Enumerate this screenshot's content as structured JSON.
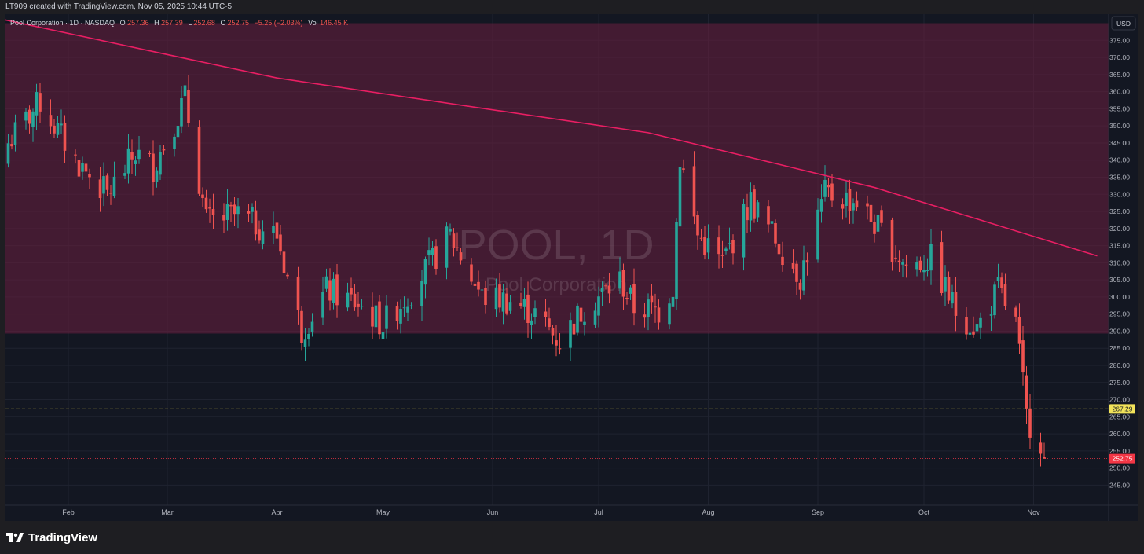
{
  "header": {
    "created_by": "LT909 created with TradingView.com, Nov 05, 2025 10:44 UTC-5"
  },
  "legend": {
    "symbol": "Pool Corporation · 1D · NASDAQ",
    "o_label": "O",
    "o_value": "257.36",
    "h_label": "H",
    "h_value": "257.39",
    "l_label": "L",
    "l_value": "252.68",
    "c_label": "C",
    "c_value": "252.75",
    "change": "−5.25 (−2.03%)",
    "vol_label": "Vol",
    "vol_value": "146.45 K"
  },
  "currency_button": "USD",
  "watermark": {
    "ticker": "POOL, 1D",
    "name": "Pool Corporation"
  },
  "footer": {
    "brand": "TradingView"
  },
  "colors": {
    "up": "#26a69a",
    "down": "#ef5350",
    "trendline": "#e91e63",
    "zone": "#6b1f3f",
    "dotted_level": "#e8d84c",
    "last_price": "#f23645"
  },
  "chart_data": {
    "type": "candlestick",
    "x_labels": [
      "Feb",
      "Mar",
      "Apr",
      "May",
      "Jun",
      "Jul",
      "Aug",
      "Sep",
      "Oct",
      "Nov"
    ],
    "y_ticks": [
      245,
      250,
      255,
      260,
      265,
      270,
      275,
      280,
      285,
      290,
      295,
      300,
      305,
      310,
      315,
      320,
      325,
      330,
      335,
      340,
      345,
      350,
      355,
      360,
      365,
      370,
      375
    ],
    "ylim": [
      240.5,
      381.5
    ],
    "resistance_zone": {
      "from": 289.3,
      "to": 380
    },
    "descending_trendline": [
      {
        "date": "2025-01-14",
        "price": 381
      },
      {
        "date": "2025-04-01",
        "price": 364
      },
      {
        "date": "2025-07-15",
        "price": 348
      },
      {
        "date": "2025-09-17",
        "price": 332
      },
      {
        "date": "2025-11-19",
        "price": 312
      }
    ],
    "marked_level": {
      "value": 267.29,
      "label": "267.29"
    },
    "last_price": {
      "value": 252.75,
      "label": "252.75"
    },
    "anchors": [
      {
        "date": "2025-01-15",
        "close": 345
      },
      {
        "date": "2025-01-24",
        "close": 357
      },
      {
        "date": "2025-02-03",
        "close": 340
      },
      {
        "date": "2025-02-12",
        "close": 330
      },
      {
        "date": "2025-02-20",
        "close": 342
      },
      {
        "date": "2025-02-25",
        "close": 338
      },
      {
        "date": "2025-03-06",
        "close": 358
      },
      {
        "date": "2025-03-12",
        "close": 322
      },
      {
        "date": "2025-03-21",
        "close": 324
      },
      {
        "date": "2025-04-01",
        "close": 318
      },
      {
        "date": "2025-04-08",
        "close": 290
      },
      {
        "date": "2025-04-15",
        "close": 302
      },
      {
        "date": "2025-04-24",
        "close": 298
      },
      {
        "date": "2025-05-01",
        "close": 292
      },
      {
        "date": "2025-05-09",
        "close": 302
      },
      {
        "date": "2025-05-20",
        "close": 318
      },
      {
        "date": "2025-05-29",
        "close": 300
      },
      {
        "date": "2025-06-06",
        "close": 299
      },
      {
        "date": "2025-06-13",
        "close": 295
      },
      {
        "date": "2025-06-20",
        "close": 287
      },
      {
        "date": "2025-06-27",
        "close": 297
      },
      {
        "date": "2025-07-07",
        "close": 305
      },
      {
        "date": "2025-07-11",
        "close": 297
      },
      {
        "date": "2025-07-18",
        "close": 296
      },
      {
        "date": "2025-07-22",
        "close": 303
      },
      {
        "date": "2025-07-24",
        "close": 341
      },
      {
        "date": "2025-07-29",
        "close": 318
      },
      {
        "date": "2025-08-05",
        "close": 310
      },
      {
        "date": "2025-08-13",
        "close": 328
      },
      {
        "date": "2025-08-20",
        "close": 317
      },
      {
        "date": "2025-08-27",
        "close": 306
      },
      {
        "date": "2025-09-03",
        "close": 330
      },
      {
        "date": "2025-09-12",
        "close": 328
      },
      {
        "date": "2025-09-18",
        "close": 320
      },
      {
        "date": "2025-09-26",
        "close": 309
      },
      {
        "date": "2025-10-03",
        "close": 311
      },
      {
        "date": "2025-10-10",
        "close": 296
      },
      {
        "date": "2025-10-16",
        "close": 291
      },
      {
        "date": "2025-10-22",
        "close": 302
      },
      {
        "date": "2025-10-27",
        "close": 292
      },
      {
        "date": "2025-10-30",
        "close": 265
      },
      {
        "date": "2025-11-03",
        "close": 258
      },
      {
        "date": "2025-11-04",
        "close": 252.75
      }
    ]
  }
}
